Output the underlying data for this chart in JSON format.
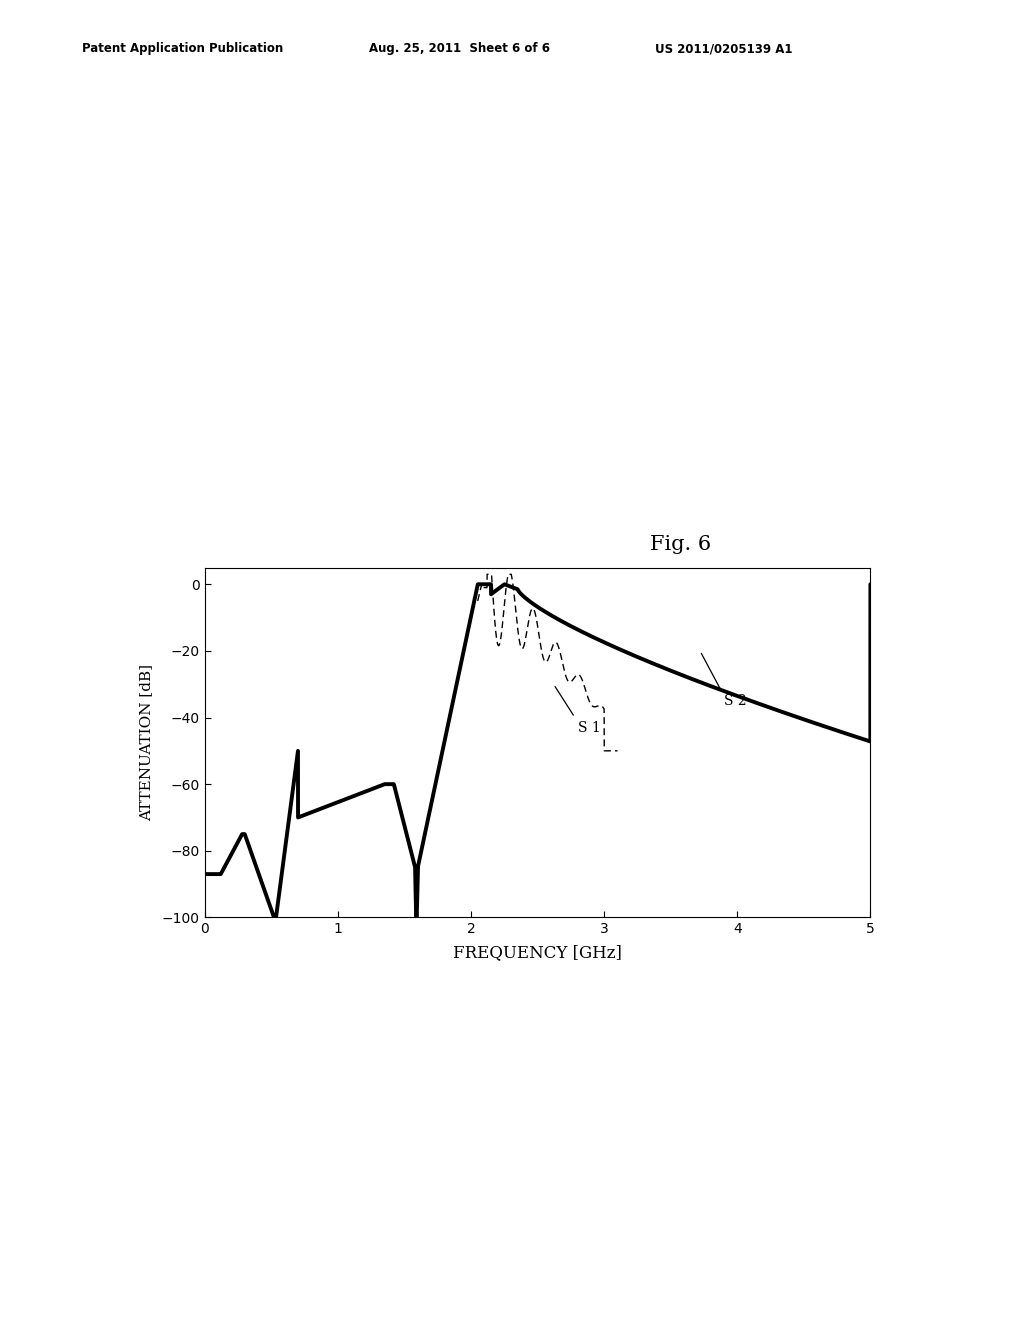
{
  "fig_label": "Fig. 6",
  "patent_left": "Patent Application Publication",
  "patent_mid": "Aug. 25, 2011  Sheet 6 of 6",
  "patent_right": "US 2011/0205139 A1",
  "xlabel": "FREQUENCY [GHz]",
  "ylabel": "ATTENUATION [dB]",
  "xlim": [
    0,
    5
  ],
  "ylim": [
    -100,
    5
  ],
  "yticks": [
    0,
    -20,
    -40,
    -60,
    -80,
    -100
  ],
  "xticks": [
    0,
    1,
    2,
    3,
    4,
    5
  ],
  "s1_label": "S 1",
  "s2_label": "S 2",
  "background_color": "#ffffff"
}
